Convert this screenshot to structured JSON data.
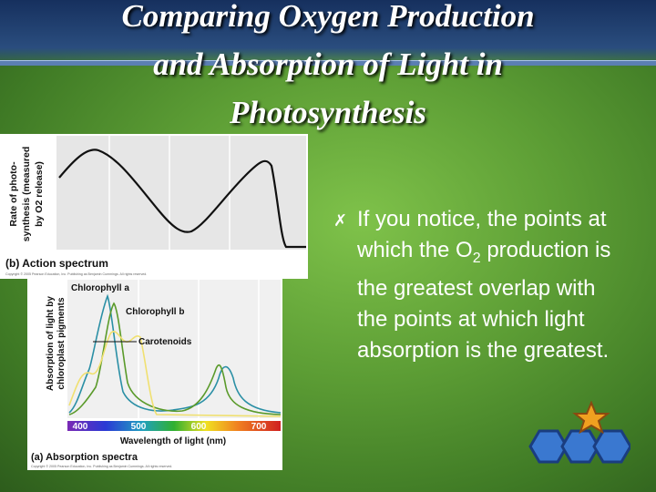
{
  "title": [
    "Comparing Oxygen Production",
    "and Absorption of Light in",
    "Photosynthesis"
  ],
  "action_spectrum": {
    "y_label": [
      "Rate of photo-",
      "synthesis (measured",
      "by O2 release)"
    ],
    "caption": "(b) Action spectrum",
    "copyright": "Copyright © 2005 Pearson Education, Inc. Publishing as Benjamin Cummings. All rights reserved."
  },
  "absorption_spectra": {
    "labels": [
      "Chlorophyll a",
      "Chlorophyll b",
      "Carotenoids"
    ],
    "y_label": [
      "Absorption of light by",
      "chloroplast pigments"
    ],
    "x_ticks": [
      "400",
      "500",
      "600",
      "700"
    ],
    "x_label": "Wavelength of light (nm)",
    "caption": "(a) Absorption spectra",
    "copyright": "Copyright © 2005 Pearson Education, Inc. Publishing as Benjamin Cummings. All rights reserved."
  },
  "bullet": {
    "before": "If you notice, the points at which the O",
    "subscript": "2",
    "after": "production is the greatest overlap with the points at which light absorption is the greatest."
  }
}
